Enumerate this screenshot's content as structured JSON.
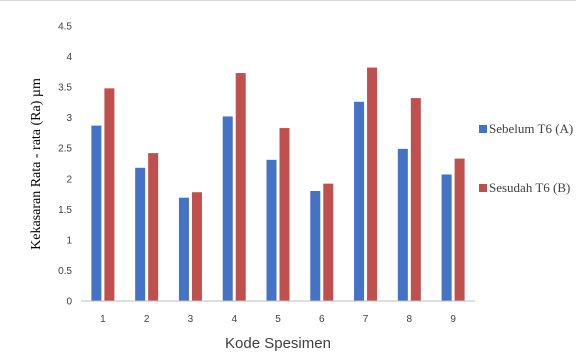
{
  "chart_data": {
    "type": "bar",
    "categories": [
      "1",
      "2",
      "3",
      "4",
      "5",
      "6",
      "7",
      "8",
      "9"
    ],
    "series": [
      {
        "name": "Sebelum T6 (A)",
        "color": "#4472C4",
        "values": [
          2.87,
          2.18,
          1.69,
          3.02,
          2.31,
          1.8,
          3.26,
          2.49,
          2.07
        ]
      },
      {
        "name": "Sesudah T6 (B)",
        "color": "#C0504D",
        "values": [
          3.48,
          2.42,
          1.78,
          3.73,
          2.83,
          1.92,
          3.82,
          3.32,
          2.33
        ]
      }
    ],
    "xlabel": "Kode Spesimen",
    "ylabel": "Kekasaran Rata - rata (Ra) µm",
    "ylim": [
      0,
      4.5
    ],
    "yticks": [
      "0",
      "0.5",
      "1",
      "1.5",
      "2",
      "2.5",
      "3",
      "3.5",
      "4",
      "4.5"
    ],
    "grid": false,
    "legend_position": "right"
  }
}
